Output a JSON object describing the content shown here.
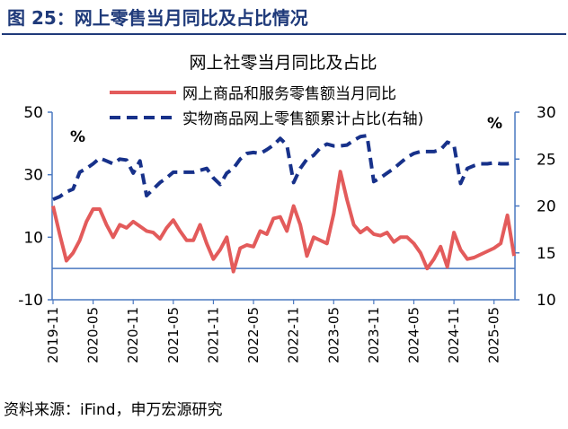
{
  "figure": {
    "heading": "图 25：网上零售当月同比及占比情况",
    "source": "资料来源：iFind，申万宏源研究"
  },
  "colors": {
    "title_bar": "#1f3a7a",
    "growth_line": "#e35b5b",
    "share_line": "#17318a",
    "axis": "#4a78c0",
    "zero_line": "#4a78c0"
  },
  "chart_data": {
    "type": "line",
    "title": "网上社零当月同比及占比",
    "left_unit": "%",
    "right_unit": "%",
    "ylim_left": [
      -10,
      50
    ],
    "yticks_left": [
      "50",
      "30",
      "10",
      "-10"
    ],
    "ylim_right": [
      10,
      30
    ],
    "yticks_right": [
      "30",
      "25",
      "20",
      "15",
      "10"
    ],
    "x_tick_labels": [
      "2019-11",
      "2020-05",
      "2020-11",
      "2021-05",
      "2021-11",
      "2022-05",
      "2022-11",
      "2023-05",
      "2023-11",
      "2024-05",
      "2024-11",
      "2025-05"
    ],
    "series": [
      {
        "name": "网上商品和服务零售额当月同比",
        "axis": "left",
        "style": "solid",
        "values": [
          20,
          11,
          2.5,
          5,
          9,
          15,
          19,
          19,
          14,
          10,
          14,
          13,
          15,
          13.5,
          12,
          11.5,
          9.5,
          13,
          15.5,
          12,
          9,
          9,
          14,
          8,
          3,
          6,
          10,
          -1,
          6.5,
          7.5,
          7,
          12,
          11,
          16,
          16.5,
          12,
          20,
          14,
          4,
          10,
          9,
          8,
          17.5,
          31,
          22,
          14,
          11.5,
          13,
          11,
          10.5,
          11.5,
          8.5,
          10,
          10,
          8,
          5,
          0,
          3,
          7,
          0.5,
          11.5,
          6,
          3,
          3.5,
          4.5,
          5.5,
          6.5,
          8,
          17,
          4
        ]
      },
      {
        "name": "实物商品网上零售额累计占比(右轴)",
        "axis": "right",
        "style": "dashed",
        "values": [
          20.7,
          21.0,
          21.5,
          21.8,
          23.6,
          24.0,
          24.5,
          25.1,
          24.8,
          24.5,
          25.0,
          24.9,
          23.5,
          24.8,
          21.1,
          21.8,
          22.5,
          23.0,
          23.6,
          23.6,
          23.6,
          23.6,
          23.8,
          24.0,
          23.0,
          22.3,
          23.5,
          24.0,
          25.0,
          25.6,
          25.7,
          25.6,
          26.0,
          26.5,
          27.2,
          26.5,
          22.5,
          24.0,
          25.0,
          25.4,
          26.2,
          26.6,
          26.4,
          26.4,
          26.5,
          27.0,
          27.4,
          27.5,
          22.6,
          23.0,
          23.5,
          24.0,
          24.6,
          25.2,
          25.6,
          25.8,
          25.8,
          25.8,
          26.0,
          26.8,
          26.5,
          22.4,
          24.0,
          24.3,
          24.5,
          24.5,
          24.6,
          24.5,
          24.5,
          24.6
        ]
      }
    ]
  }
}
